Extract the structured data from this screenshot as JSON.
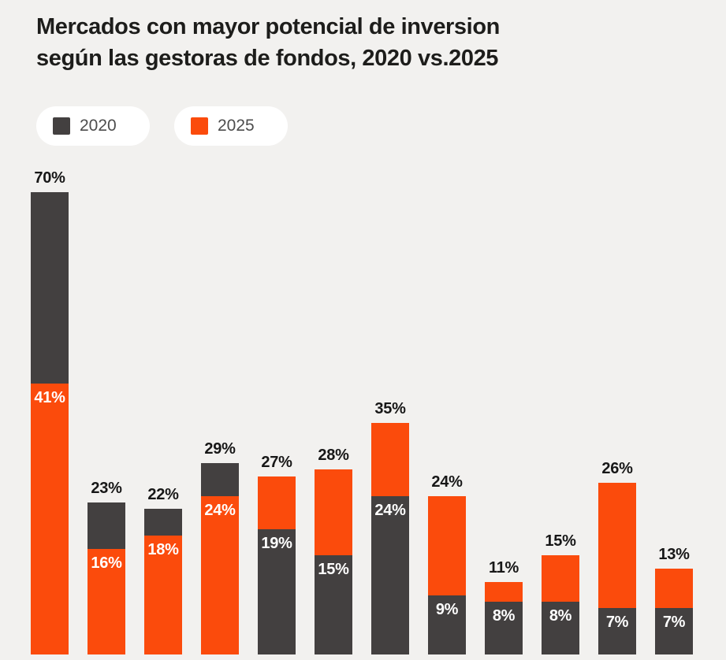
{
  "header": {
    "title_line1": "Mercados con mayor potencial de inversion",
    "title_line2": "según las gestoras de fondos, 2020 vs.2025"
  },
  "legend": {
    "items": [
      {
        "label": "2020",
        "color": "#434040"
      },
      {
        "label": "2025",
        "color": "#FB4B0C"
      }
    ]
  },
  "colors": {
    "background": "#F2F1EF",
    "series_2020": "#434040",
    "series_2025": "#FB4B0C",
    "title_text": "#1D1D1B",
    "outer_value_label": "#171717",
    "inner_value_label": "#FFFFFF",
    "legend_text": "#4D4D4D",
    "legend_pill_background": "#FFFFFF"
  },
  "chart_data": {
    "type": "bar",
    "variant": "overlapping-columns",
    "title": "Mercados con mayor potencial de inversion según las gestoras de fondos, 2020 vs.2025",
    "unit": "%",
    "series": [
      {
        "name": "2020",
        "color": "#434040",
        "values": [
          70,
          23,
          22,
          29,
          19,
          15,
          24,
          9,
          8,
          8,
          7,
          7
        ]
      },
      {
        "name": "2025",
        "color": "#FB4B0C",
        "values": [
          41,
          16,
          18,
          24,
          27,
          28,
          35,
          24,
          11,
          15,
          26,
          13
        ]
      }
    ],
    "value_labels": {
      "max_value": "above column, dark text",
      "min_value": "inside column top, white text"
    },
    "categories_visible": false,
    "x_axis_visible": false,
    "y_axis_visible": false,
    "grid": false,
    "ylim": [
      0,
      70
    ],
    "legend_position": "top-left"
  }
}
